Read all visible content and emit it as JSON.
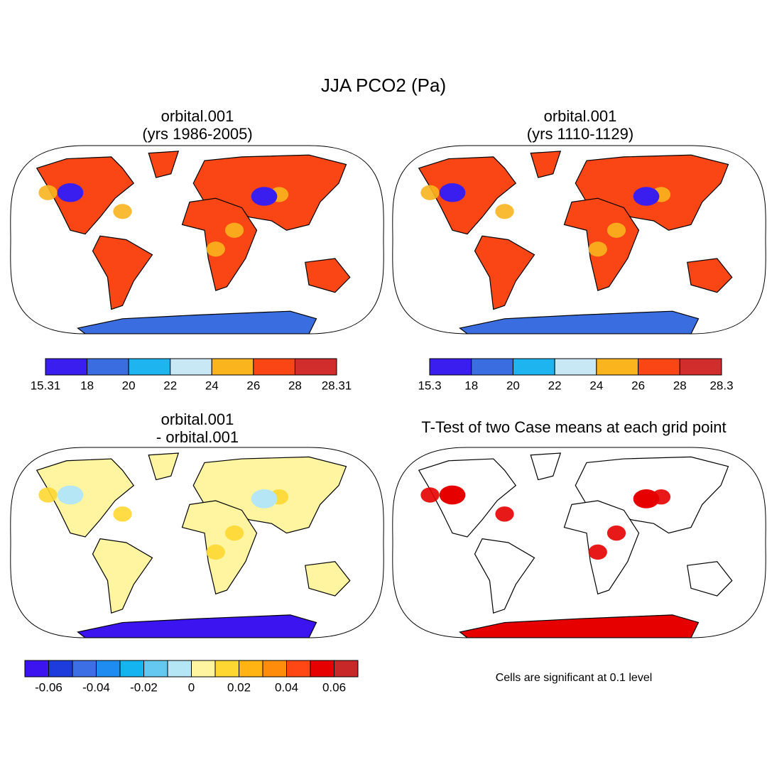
{
  "title": "JJA PCO2 (Pa)",
  "panels": [
    {
      "title": [
        "orbital.001",
        "(yrs 1986-2005)"
      ],
      "colorbar": {
        "labels": [
          15.31,
          18,
          20,
          22,
          24,
          26,
          28,
          28.31
        ],
        "colors": [
          "#3a1ef0",
          "#3a6ee0",
          "#1eb4f0",
          "#c8e8f5",
          "#fab41e",
          "#fa4614",
          "#d22d2d"
        ]
      }
    },
    {
      "title": [
        "orbital.001",
        "(yrs 1110-1129)"
      ],
      "colorbar": {
        "labels": [
          15.3,
          18,
          20,
          22,
          24,
          26,
          28,
          28.3
        ],
        "colors": [
          "#3a1ef0",
          "#3a6ee0",
          "#1eb4f0",
          "#c8e8f5",
          "#fab41e",
          "#fa4614",
          "#d22d2d"
        ]
      }
    },
    {
      "title": [
        "orbital.001",
        "- orbital.001"
      ],
      "colorbar": {
        "labels": [
          -0.06,
          -0.04,
          -0.02,
          0,
          0.02,
          0.04,
          0.06
        ],
        "colors": [
          "#3c14f0",
          "#1e3cdc",
          "#3c6ee6",
          "#1e8cf0",
          "#14b4f0",
          "#64c8f0",
          "#b4e6f5",
          "#fff5a0",
          "#ffd732",
          "#ffb414",
          "#ff8c0a",
          "#ff4614",
          "#e60000",
          "#c82828"
        ]
      }
    },
    {
      "title": [
        "T-Test of two Case means at each grid point"
      ],
      "note": "Cells are significant at 0.1 level"
    }
  ]
}
